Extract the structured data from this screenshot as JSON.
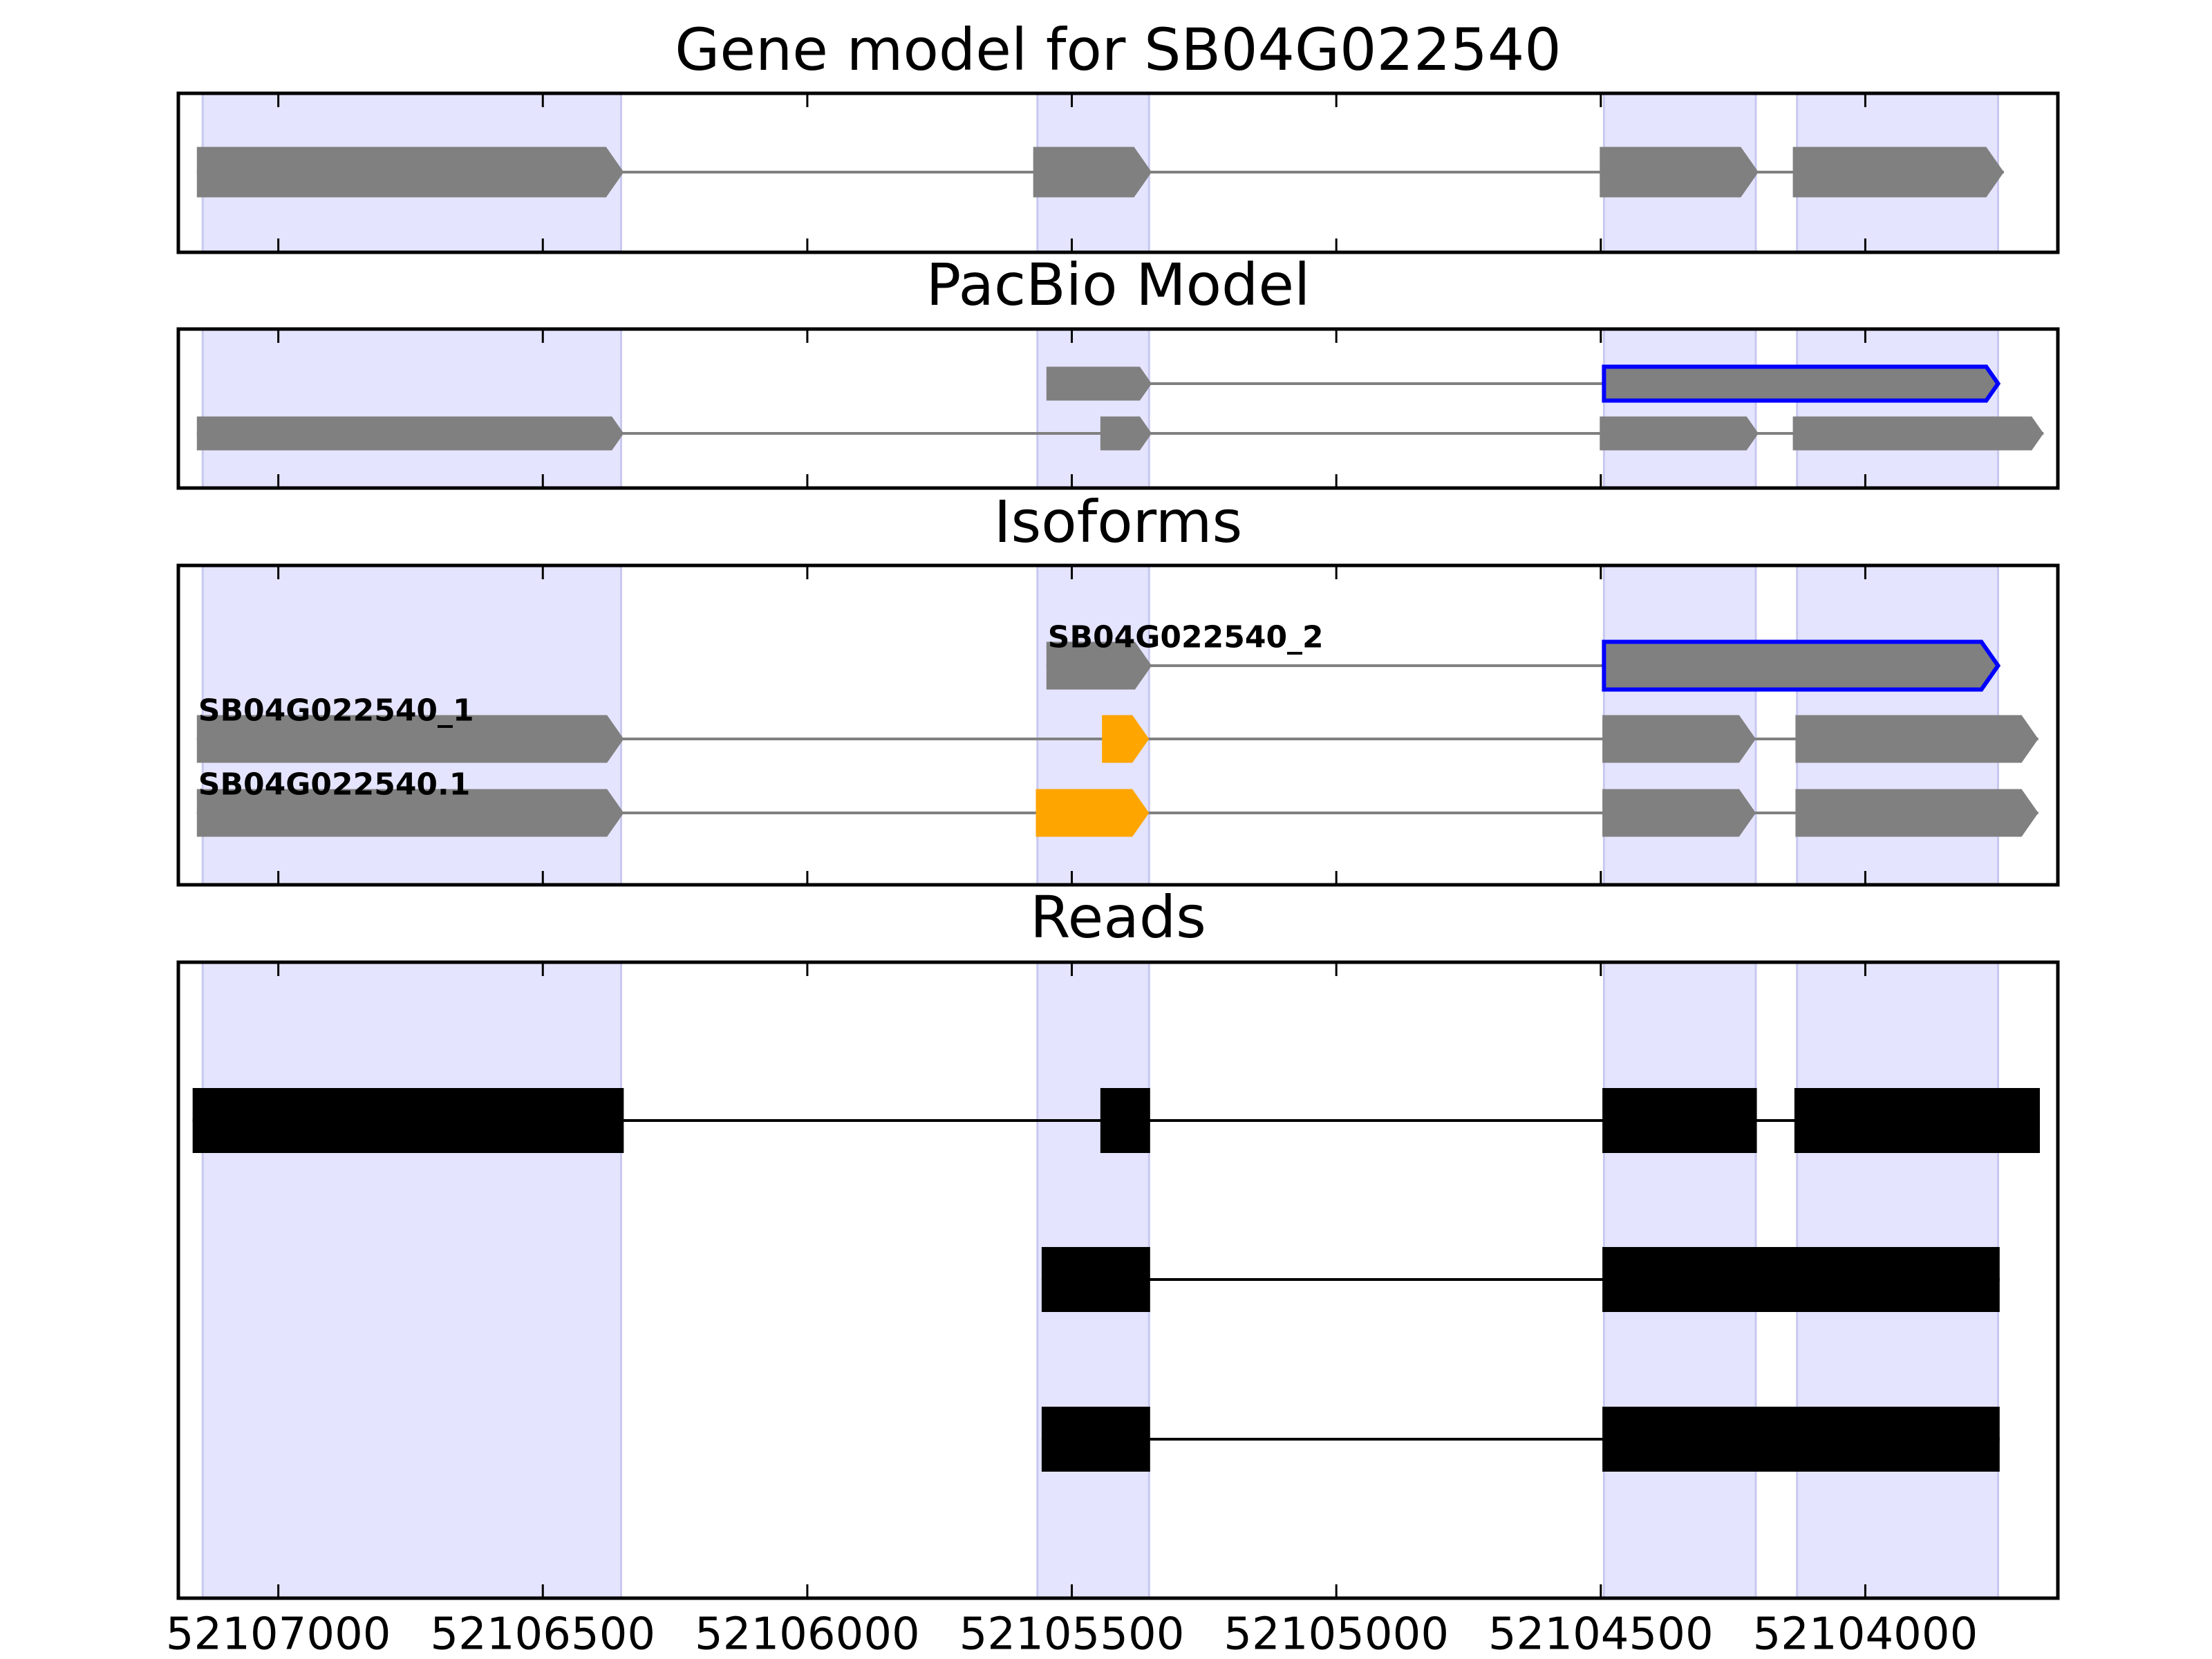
{
  "chart_data": {
    "type": "track",
    "xlim": [
      52107189,
      52103636
    ],
    "xticks": [
      52107000,
      52106500,
      52106000,
      52105500,
      52105000,
      52104500,
      52104000
    ],
    "shaded_regions": [
      [
        52107143,
        52106352
      ],
      [
        52105565,
        52105354
      ],
      [
        52104494,
        52104207
      ],
      [
        52104129,
        52103749
      ]
    ],
    "shade_color": "#e4e4fe",
    "panels": [
      {
        "title": "Gene model for SB04G022540",
        "arrows": true,
        "intron_color": "#808080",
        "tracks": [
          {
            "exons": [
              {
                "start": 52107154,
                "end": 52106347,
                "color": "#808080"
              },
              {
                "start": 52105573,
                "end": 52105349,
                "color": "#808080"
              },
              {
                "start": 52104502,
                "end": 52104202,
                "color": "#808080"
              },
              {
                "start": 52104137,
                "end": 52103738,
                "color": "#808080"
              }
            ]
          }
        ]
      },
      {
        "title": "PacBio Model",
        "arrows": true,
        "intron_color": "#808080",
        "tracks": [
          {
            "exons": [
              {
                "start": 52105548,
                "end": 52105349,
                "color": "#808080"
              },
              {
                "start": 52104494,
                "end": 52103749,
                "color": "#808080",
                "edgecolor": "#0000ff"
              }
            ]
          },
          {
            "exons": [
              {
                "start": 52107154,
                "end": 52106347,
                "color": "#808080"
              },
              {
                "start": 52105446,
                "end": 52105349,
                "color": "#808080"
              },
              {
                "start": 52104502,
                "end": 52104202,
                "color": "#808080"
              },
              {
                "start": 52104137,
                "end": 52103663,
                "color": "#808080"
              }
            ]
          }
        ]
      },
      {
        "title": "Isoforms",
        "arrows": true,
        "intron_color": "#808080",
        "tracks": [
          {
            "name": "SB04G022540_2",
            "exons": [
              {
                "start": 52105548,
                "end": 52105349,
                "color": "#808080"
              },
              {
                "start": 52104494,
                "end": 52103749,
                "color": "#808080",
                "edgecolor": "#0000ff"
              }
            ]
          },
          {
            "name": "SB04G022540_1",
            "exons": [
              {
                "start": 52107154,
                "end": 52106347,
                "color": "#808080"
              },
              {
                "start": 52105443,
                "end": 52105354,
                "color": "#ffa500"
              },
              {
                "start": 52104497,
                "end": 52104207,
                "color": "#808080"
              },
              {
                "start": 52104132,
                "end": 52103673,
                "color": "#808080"
              }
            ]
          },
          {
            "name": "SB04G022540.1",
            "exons": [
              {
                "start": 52107154,
                "end": 52106347,
                "color": "#808080"
              },
              {
                "start": 52105568,
                "end": 52105354,
                "color": "#ffa500"
              },
              {
                "start": 52104497,
                "end": 52104207,
                "color": "#808080"
              },
              {
                "start": 52104132,
                "end": 52103673,
                "color": "#808080"
              }
            ]
          }
        ]
      },
      {
        "title": "Reads",
        "arrows": false,
        "intron_color": "#000000",
        "tracks": [
          {
            "exons": [
              {
                "start": 52107162,
                "end": 52106347,
                "color": "#000000"
              },
              {
                "start": 52105446,
                "end": 52105352,
                "color": "#000000"
              },
              {
                "start": 52104497,
                "end": 52104205,
                "color": "#000000"
              },
              {
                "start": 52104134,
                "end": 52103670,
                "color": "#000000"
              }
            ]
          },
          {
            "exons": [
              {
                "start": 52105557,
                "end": 52105352,
                "color": "#000000"
              },
              {
                "start": 52104497,
                "end": 52103746,
                "color": "#000000"
              }
            ]
          },
          {
            "exons": [
              {
                "start": 52105557,
                "end": 52105352,
                "color": "#000000"
              },
              {
                "start": 52104497,
                "end": 52103746,
                "color": "#000000"
              }
            ]
          }
        ]
      }
    ]
  }
}
